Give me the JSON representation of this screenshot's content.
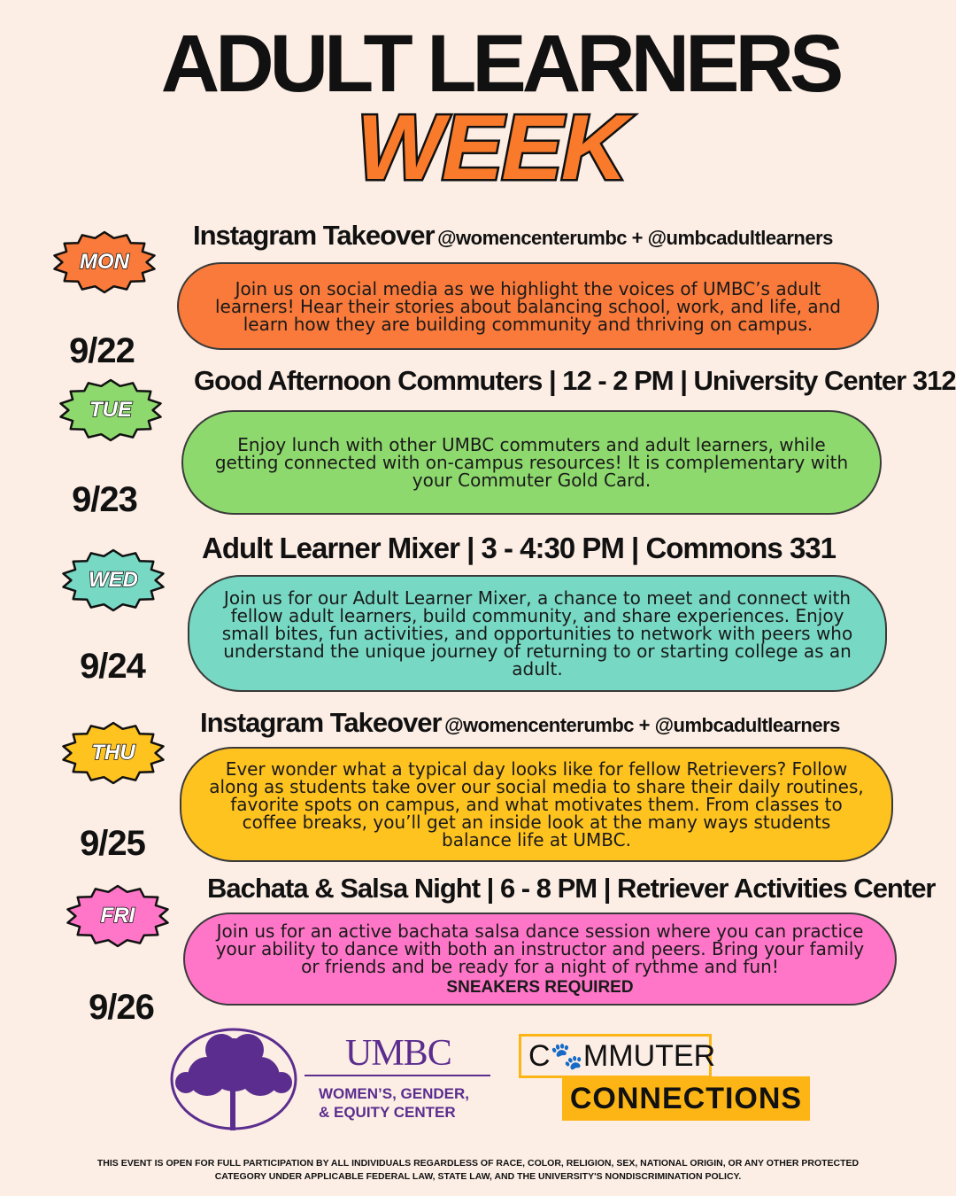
{
  "header": {
    "title": "ADULT LEARNERS",
    "subtitle": "WEEK",
    "subtitle_color": "#F97A2A"
  },
  "days": [
    {
      "day": "MON",
      "date": "9/22",
      "color": "#F97A3A",
      "title": "Instagram Takeover",
      "extra": "@womencenterumbc + @umbcadultlearners",
      "description": "Join us on social media as we highlight the voices of UMBC’s adult learners! Hear their stories about balancing school, work, and life, and learn how they are building community and thriving on campus.",
      "note": ""
    },
    {
      "day": "TUE",
      "date": "9/23",
      "color": "#8ED96E",
      "title": "Good Afternoon Commuters | 12 - 2 PM | University Center 312",
      "extra": "",
      "description": "Enjoy lunch with other UMBC commuters and adult learners, while getting connected with on-campus resources!  It is complementary with your Commuter Gold Card.",
      "note": ""
    },
    {
      "day": "WED",
      "date": "9/24",
      "color": "#77D9C4",
      "title": "Adult Learner Mixer | 3 - 4:30 PM | Commons 331",
      "extra": "",
      "description": "Join us for our Adult Learner Mixer, a chance to meet and connect with fellow adult learners, build community, and share experiences. Enjoy small bites, fun activities, and opportunities to network with peers who understand the unique journey of returning to or starting college as an adult.",
      "note": ""
    },
    {
      "day": "THU",
      "date": "9/25",
      "color": "#FFC31F",
      "title": "Instagram Takeover",
      "extra": "@womencenterumbc + @umbcadultlearners",
      "description": "Ever wonder what a typical day looks like for fellow Retrievers? Follow along as students take over our social media to share their daily routines, favorite spots on campus, and what motivates them. From classes to coffee breaks, you’ll get an inside look at the many ways students balance life at UMBC.",
      "note": ""
    },
    {
      "day": "FRI",
      "date": "9/26",
      "color": "#FF76C8",
      "title": "Bachata & Salsa Night | 6 - 8 PM | Retriever Activities Center",
      "extra": "",
      "description": "Join us for an active bachata salsa dance session where you can practice your ability to dance with both an instructor and peers. Bring your family or friends and be ready for a night of rythme and fun!",
      "note": "SNEAKERS REQUIRED"
    }
  ],
  "logos": {
    "umbc": "UMBC",
    "center_line1": "WOMEN’S, GENDER,",
    "center_line2": "& EQUITY CENTER",
    "commuter_pre": "C",
    "commuter_post": "MMUTER",
    "connections": "CONNECTIONS",
    "purple": "#5B2D8E",
    "gold": "#FDB515"
  },
  "footer": {
    "line1": "THIS EVENT IS OPEN FOR FULL PARTICIPATION BY ALL INDIVIDUALS  REGARDLESS OF RACE, COLOR, RELIGION, SEX, NATIONAL ORIGIN, OR ANY  OTHER PROTECTED",
    "line2": "CATEGORY UNDER APPLICABLE FEDERAL LAW, STATE LAW,  AND THE UNIVERSITY'S NONDISCRIMINATION POLICY."
  }
}
